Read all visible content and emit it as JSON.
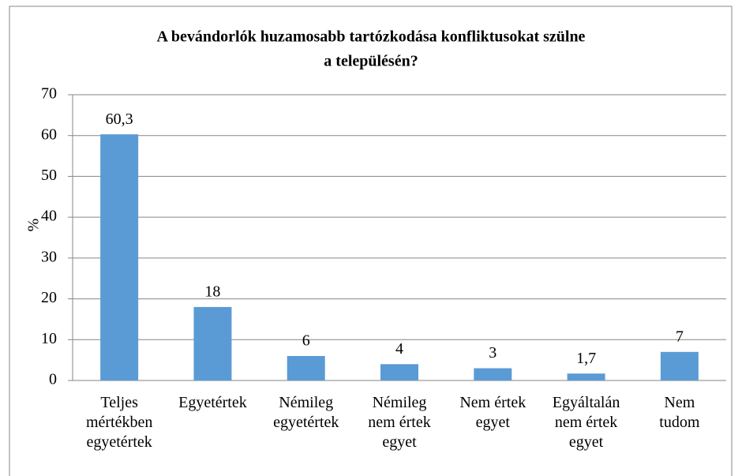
{
  "chart_data": {
    "type": "bar",
    "title": [
      "A bevándorlók huzamosabb tartózkodása konfliktusokat szülne",
      "a településén?"
    ],
    "y_label": "%",
    "categories": [
      "Teljes\nmértékben\negyetértek",
      "Egyetértek",
      "Némileg\negyetértek",
      "Némileg\nnem értek\negyet",
      "Nem értek\negyet",
      "Egyáltalán\nnem értek\negyet",
      "Nem\ntudom"
    ],
    "values": [
      60.3,
      18,
      6,
      4,
      3,
      1.7,
      7
    ],
    "value_labels": [
      "60,3",
      "18",
      "6",
      "4",
      "3",
      "1,7",
      "7"
    ],
    "color": "#5b9bd5",
    "ylim": [
      0,
      70
    ],
    "yticks": [
      0,
      10,
      20,
      30,
      40,
      50,
      60,
      70
    ],
    "grid": true
  }
}
